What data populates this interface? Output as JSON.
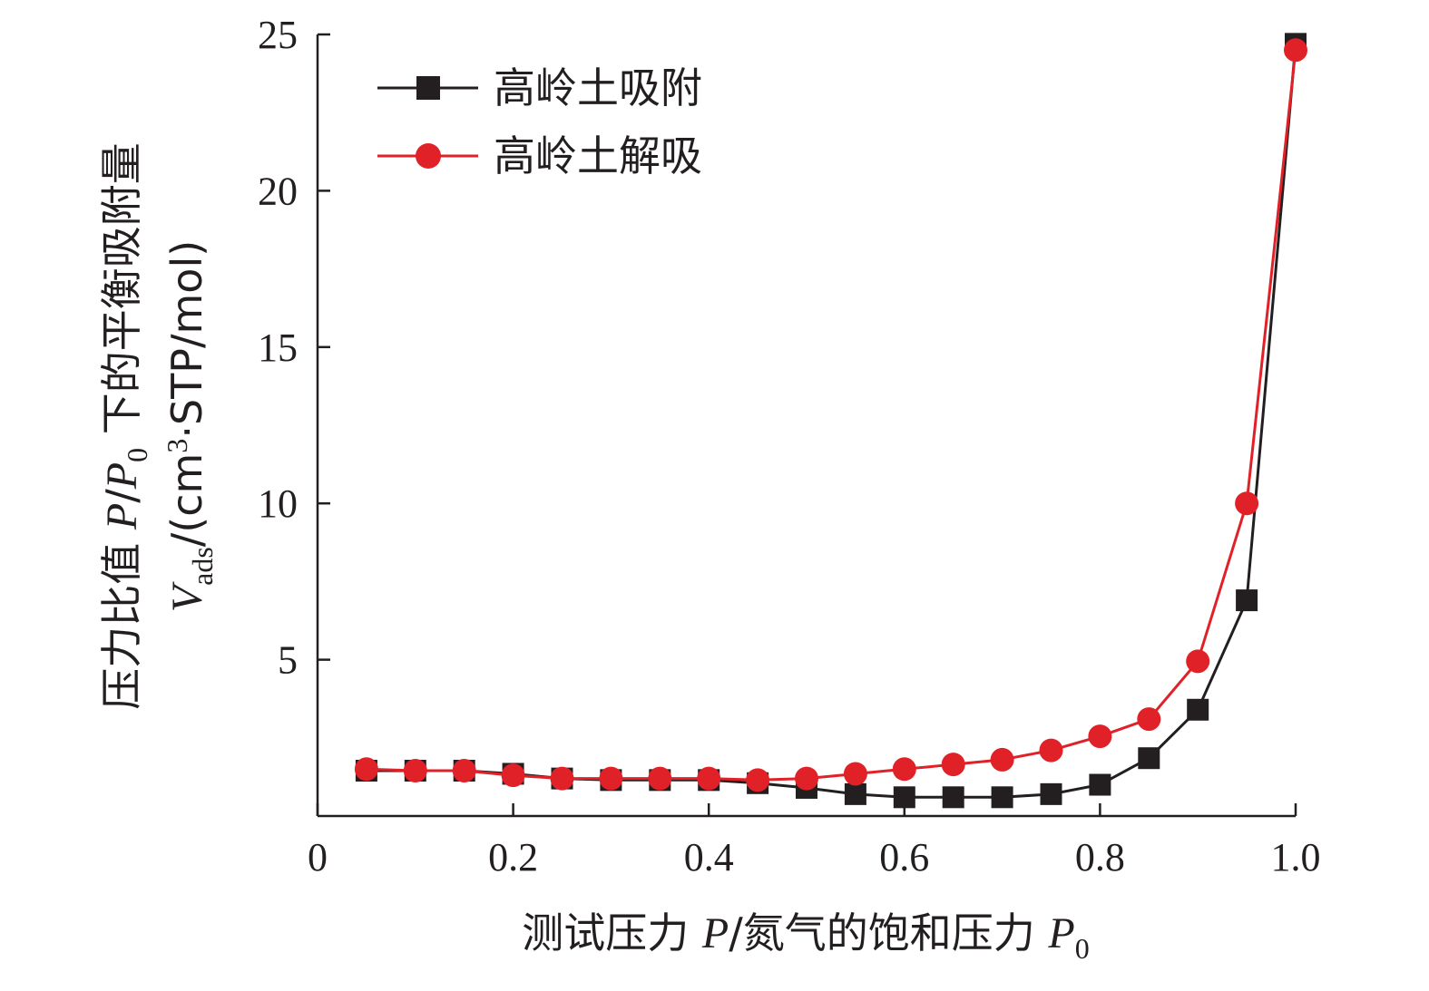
{
  "chart_data": {
    "type": "line",
    "x_axis": {
      "label_parts": [
        "测试压力 ",
        "P",
        "/氮气的饱和压力 ",
        "P",
        "0"
      ],
      "range": [
        0,
        1.0
      ],
      "ticks": [
        0,
        0.2,
        0.4,
        0.6,
        0.8,
        1.0
      ],
      "tick_labels": [
        "0",
        "0.2",
        "0.4",
        "0.6",
        "0.8",
        "1.0"
      ]
    },
    "y_axis": {
      "label_line1_parts": [
        "压力比值 ",
        "P",
        "/",
        "P",
        "0",
        " 下的平衡吸附量"
      ],
      "label_line2_parts": [
        "V",
        "ads",
        "/(cm",
        "3",
        "·STP/mol)"
      ],
      "range": [
        0,
        25
      ],
      "ticks": [
        5,
        10,
        15,
        20,
        25
      ],
      "tick_labels": [
        "5",
        "10",
        "15",
        "20",
        "25"
      ]
    },
    "x": [
      0.05,
      0.1,
      0.15,
      0.2,
      0.25,
      0.3,
      0.35,
      0.4,
      0.45,
      0.5,
      0.55,
      0.6,
      0.65,
      0.7,
      0.75,
      0.8,
      0.85,
      0.9,
      0.95,
      1.0
    ],
    "series": [
      {
        "name": "高岭土吸附",
        "color": "#231f20",
        "marker": "square",
        "values": [
          1.45,
          1.45,
          1.45,
          1.35,
          1.2,
          1.15,
          1.15,
          1.15,
          1.05,
          0.9,
          0.7,
          0.6,
          0.6,
          0.6,
          0.7,
          1.0,
          1.85,
          3.4,
          6.9,
          24.7
        ]
      },
      {
        "name": "高岭土解吸",
        "color": "#e02228",
        "marker": "circle",
        "values": [
          1.5,
          1.45,
          1.45,
          1.3,
          1.2,
          1.2,
          1.2,
          1.2,
          1.15,
          1.2,
          1.35,
          1.5,
          1.65,
          1.8,
          2.1,
          2.55,
          3.1,
          4.95,
          10.0,
          24.5
        ]
      }
    ],
    "legend_position": "top-left",
    "grid": false
  }
}
